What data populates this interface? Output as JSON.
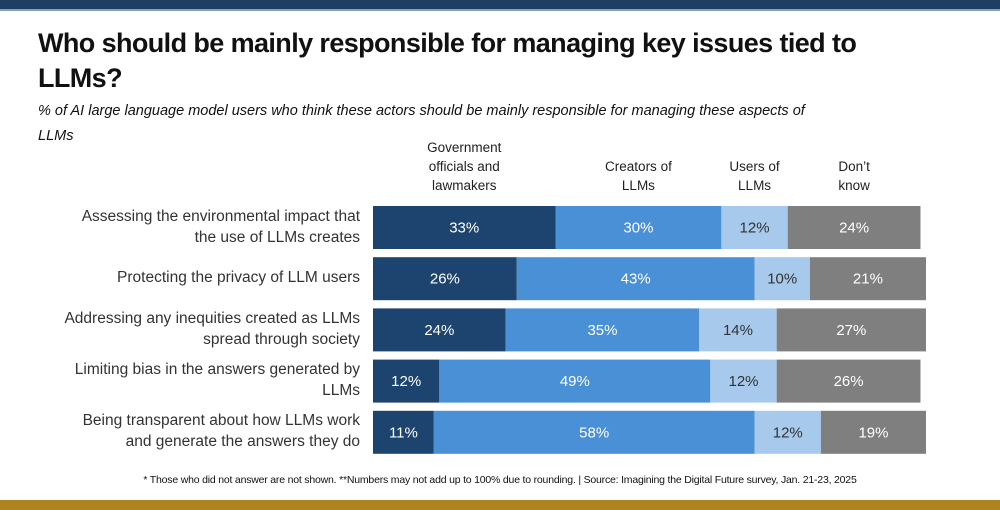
{
  "chart_data": {
    "type": "bar",
    "orientation": "horizontal",
    "stacked": true,
    "title": "Who should be mainly responsible for managing key issues tied to LLMs?",
    "subtitle": "% of AI large language model users who think these actors should be mainly responsible for managing these aspects of LLMs",
    "categories": [
      "Assessing the environmental impact that the use of LLMs creates",
      "Protecting the privacy of LLM users",
      "Addressing any inequities created as LLMs spread through society",
      "Limiting bias in the answers generated by LLMs",
      "Being transparent about how LLMs work and generate the answers they do"
    ],
    "category_lines": [
      [
        "Assessing the environmental impact that",
        "the use of LLMs creates"
      ],
      [
        "Protecting the privacy of LLM users"
      ],
      [
        "Addressing any inequities created as LLMs",
        "spread through society"
      ],
      [
        "Limiting bias in the answers generated by",
        "LLMs"
      ],
      [
        "Being transparent about how LLMs work",
        "and generate the answers they do"
      ]
    ],
    "series": [
      {
        "name": "Government officials and lawmakers",
        "name_lines": [
          "Government",
          "officials and",
          "lawmakers"
        ],
        "color": "#1c446e",
        "label_color": "#ffffff",
        "values": [
          33,
          26,
          24,
          12,
          11
        ]
      },
      {
        "name": "Creators of LLMs",
        "name_lines": [
          "Creators of",
          "LLMs"
        ],
        "color": "#4a90d6",
        "label_color": "#ffffff",
        "values": [
          30,
          43,
          35,
          49,
          58
        ]
      },
      {
        "name": "Users of LLMs",
        "name_lines": [
          "Users of",
          "LLMs"
        ],
        "color": "#a7c9ec",
        "label_color": "#333333",
        "values": [
          12,
          10,
          14,
          12,
          12
        ]
      },
      {
        "name": "Don't know",
        "name_lines": [
          "Don’t",
          "know"
        ],
        "color": "#7f7f7f",
        "label_color": "#ffffff",
        "values": [
          24,
          21,
          27,
          26,
          19
        ]
      }
    ],
    "value_suffix": "%",
    "xlim": [
      0,
      100
    ],
    "grid": false,
    "legend_placement": "top (column headers above bar segments)"
  },
  "footnote": "* Those who did not answer are not shown. **Numbers may not add up to 100% due to rounding. | Source: Imagining the Digital Future survey, Jan. 21-23, 2025",
  "colors": {
    "top_band": "#1c3f63",
    "bottom_band": "#ad8420"
  }
}
